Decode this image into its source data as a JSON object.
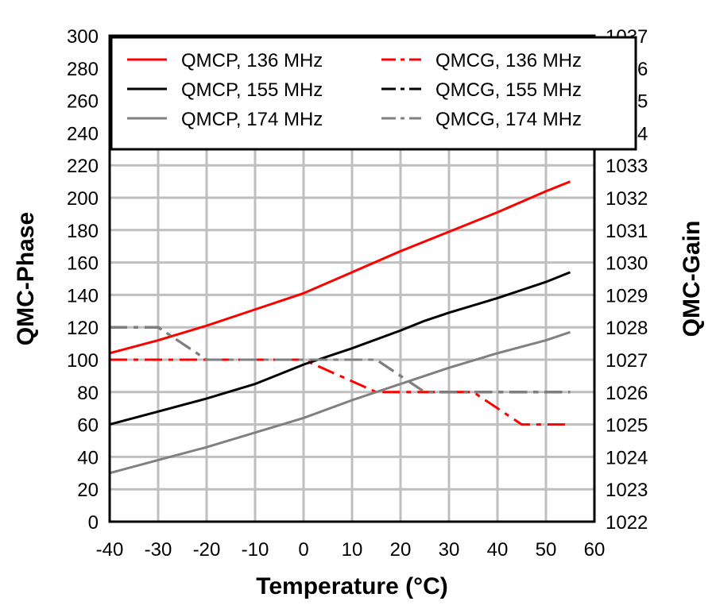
{
  "chart_data": {
    "type": "line",
    "xlabel": "Temperature (°C)",
    "ylabel": "QMC-Phase",
    "y2label": "QMC-Gain",
    "xlim": [
      -40,
      60
    ],
    "ylim": [
      0,
      300
    ],
    "y2lim": [
      1022,
      1037
    ],
    "xticks": [
      -40,
      -30,
      -20,
      -10,
      0,
      10,
      20,
      30,
      40,
      50,
      60
    ],
    "yticks": [
      0,
      20,
      40,
      60,
      80,
      100,
      120,
      140,
      160,
      180,
      200,
      220,
      240,
      260,
      280,
      300
    ],
    "y2ticks": [
      1022,
      1023,
      1024,
      1025,
      1026,
      1027,
      1028,
      1029,
      1030,
      1031,
      1032,
      1033,
      1034,
      1035,
      1036,
      1037
    ],
    "grid": true,
    "legend_placement": "top",
    "series": [
      {
        "name": "QMCP, 136 MHz",
        "axis": "left",
        "color": "#ff0000",
        "dash": "solid",
        "x": [
          -40,
          -30,
          -20,
          -10,
          0,
          10,
          20,
          30,
          40,
          50,
          55
        ],
        "y": [
          104,
          112,
          121,
          131,
          141,
          154,
          167,
          179,
          191,
          204,
          210
        ]
      },
      {
        "name": "QMCG, 136 MHz",
        "axis": "right",
        "color": "#ff0000",
        "dash": "dashdot",
        "x": [
          -40,
          0,
          15,
          35,
          45,
          55
        ],
        "y": [
          1027,
          1027,
          1026,
          1026,
          1025,
          1025
        ]
      },
      {
        "name": "QMCP, 155 MHz",
        "axis": "left",
        "color": "#000000",
        "dash": "solid",
        "x": [
          -40,
          -30,
          -20,
          -10,
          0,
          10,
          20,
          25,
          30,
          40,
          50,
          55
        ],
        "y": [
          60,
          68,
          76,
          85,
          97,
          107,
          118,
          124,
          129,
          138,
          148,
          154
        ]
      },
      {
        "name": "QMCG, 155 MHz",
        "axis": "right",
        "color": "#000000",
        "dash": "dashdot",
        "x": [
          -40,
          -30,
          -20,
          15,
          25,
          55
        ],
        "y": [
          1028,
          1028,
          1027,
          1027,
          1026,
          1026
        ]
      },
      {
        "name": "QMCP, 174 MHz",
        "axis": "left",
        "color": "#808080",
        "dash": "solid",
        "x": [
          -40,
          -30,
          -20,
          -10,
          0,
          10,
          20,
          30,
          40,
          50,
          55
        ],
        "y": [
          30,
          38,
          46,
          55,
          64,
          75,
          85,
          95,
          104,
          112,
          117
        ]
      },
      {
        "name": "QMCG, 174 MHz",
        "axis": "right",
        "color": "#808080",
        "dash": "dashdot",
        "x": [
          -40,
          -30,
          -20,
          15,
          25,
          55
        ],
        "y": [
          1028,
          1028,
          1027,
          1027,
          1026,
          1026
        ]
      }
    ]
  }
}
